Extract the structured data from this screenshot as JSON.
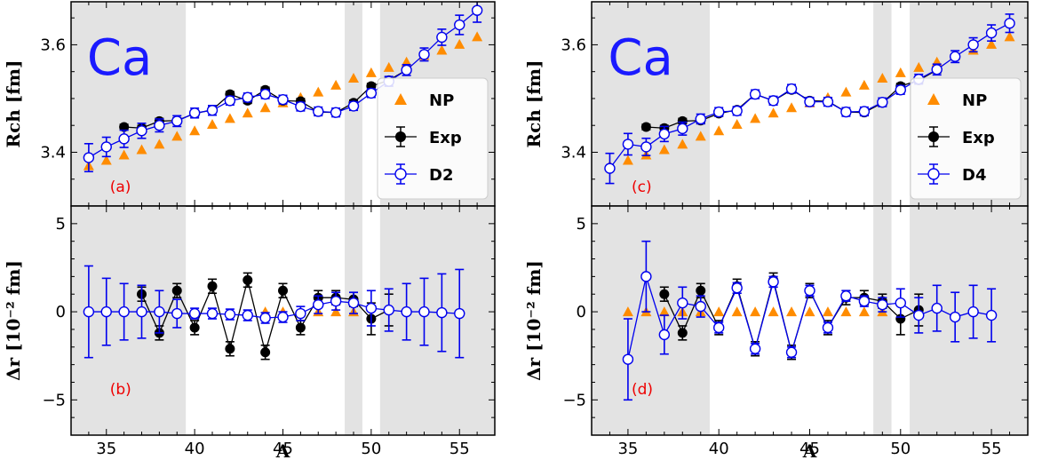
{
  "colors": {
    "np": "#ff8c00",
    "exp": "#000000",
    "theory": "#0000ee",
    "shade": "#e3e3e3",
    "element": "#1a1aff",
    "tag": "#ee0000"
  },
  "figure": {
    "element_label": "Ca",
    "xlabel": "A",
    "ylabel_top": "Rch [fm]",
    "ylabel_bottom": "Δr [10⁻² fm]"
  },
  "chart_data": [
    {
      "type": "scatter",
      "panel": "(a)",
      "xlabel": "",
      "ylabel": "Rch [fm]",
      "xlim": [
        33,
        57
      ],
      "ylim": [
        3.3,
        3.68
      ],
      "yticks": [
        3.4,
        3.6
      ],
      "xticks": [
        35,
        40,
        45,
        50,
        55
      ],
      "shaded_x": [
        [
          33,
          39.5
        ],
        [
          48.5,
          49.5
        ],
        [
          50.5,
          57
        ]
      ],
      "legend_position": "lower right",
      "legend": [
        "NP",
        "Exp",
        "D2"
      ],
      "series": [
        {
          "name": "NP",
          "marker": "triangle",
          "x": [
            34,
            35,
            36,
            37,
            38,
            39,
            40,
            41,
            42,
            43,
            44,
            45,
            46,
            47,
            48,
            49,
            50,
            51,
            52,
            53,
            54,
            55,
            56
          ],
          "y": [
            3.375,
            3.385,
            3.395,
            3.405,
            3.415,
            3.43,
            3.44,
            3.452,
            3.463,
            3.473,
            3.483,
            3.492,
            3.502,
            3.512,
            3.525,
            3.538,
            3.548,
            3.558,
            3.568,
            3.58,
            3.59,
            3.601,
            3.615
          ]
        },
        {
          "name": "Exp",
          "marker": "filled-circle",
          "x": [
            36,
            37,
            38,
            39,
            40,
            41,
            42,
            43,
            44,
            45,
            46,
            47,
            48,
            49,
            50,
            51,
            52
          ],
          "y": [
            3.447,
            3.445,
            3.458,
            3.459,
            3.472,
            3.479,
            3.508,
            3.496,
            3.516,
            3.496,
            3.495,
            3.475,
            3.474,
            3.492,
            3.523,
            3.534,
            3.553
          ],
          "err": [
            0.005,
            0.005,
            0.005,
            0.005,
            0.005,
            0.005,
            0.005,
            0.005,
            0.005,
            0.005,
            0.005,
            0.005,
            0.005,
            0.005,
            0.005,
            0.005,
            0.005
          ]
        },
        {
          "name": "D2",
          "marker": "open-circle",
          "x": [
            34,
            35,
            36,
            37,
            38,
            39,
            40,
            41,
            42,
            43,
            44,
            45,
            46,
            47,
            48,
            49,
            50,
            51,
            52,
            53,
            54,
            55,
            56
          ],
          "y": [
            3.39,
            3.41,
            3.425,
            3.44,
            3.45,
            3.458,
            3.473,
            3.478,
            3.496,
            3.502,
            3.508,
            3.498,
            3.485,
            3.476,
            3.474,
            3.486,
            3.51,
            3.532,
            3.553,
            3.582,
            3.614,
            3.637,
            3.664
          ],
          "err": [
            0.026,
            0.018,
            0.016,
            0.014,
            0.012,
            0.01,
            0.009,
            0.009,
            0.008,
            0.008,
            0.008,
            0.008,
            0.008,
            0.008,
            0.008,
            0.008,
            0.008,
            0.009,
            0.01,
            0.012,
            0.015,
            0.018,
            0.022
          ]
        }
      ]
    },
    {
      "type": "scatter",
      "panel": "(b)",
      "xlabel": "A",
      "ylabel": "Δr [10⁻² fm]",
      "xlim": [
        33,
        57
      ],
      "ylim": [
        -7,
        6
      ],
      "yticks": [
        -5,
        0,
        5
      ],
      "xticks": [
        35,
        40,
        45,
        50,
        55
      ],
      "shaded_x": [
        [
          33,
          39.5
        ],
        [
          48.5,
          49.5
        ],
        [
          50.5,
          57
        ]
      ],
      "series": [
        {
          "name": "NP",
          "marker": "triangle",
          "x": [
            44,
            45,
            46,
            47,
            48,
            49
          ],
          "y": [
            0,
            0,
            0,
            0,
            0,
            0
          ]
        },
        {
          "name": "Exp",
          "marker": "filled-circle",
          "x": [
            37,
            38,
            39,
            40,
            41,
            42,
            43,
            44,
            45,
            46,
            47,
            48,
            49,
            50,
            51
          ],
          "y": [
            1.0,
            -1.2,
            1.2,
            -0.9,
            1.45,
            -2.1,
            1.8,
            -2.3,
            1.2,
            -0.9,
            0.8,
            0.8,
            0.7,
            -0.4,
            0.1
          ],
          "err": [
            0.4,
            0.4,
            0.4,
            0.4,
            0.4,
            0.4,
            0.4,
            0.4,
            0.4,
            0.4,
            0.4,
            0.4,
            0.4,
            0.9,
            0.9
          ]
        },
        {
          "name": "D2",
          "marker": "open-circle",
          "x": [
            34,
            35,
            36,
            37,
            38,
            39,
            40,
            41,
            42,
            43,
            44,
            45,
            46,
            47,
            48,
            49,
            50,
            51,
            52,
            53,
            54,
            55
          ],
          "y": [
            0,
            0,
            0,
            0,
            0,
            -0.1,
            -0.1,
            -0.1,
            -0.15,
            -0.2,
            -0.35,
            -0.3,
            -0.1,
            0.4,
            0.6,
            0.5,
            0.2,
            0.1,
            0,
            0,
            -0.05,
            -0.1
          ],
          "err": [
            2.6,
            1.9,
            1.6,
            1.5,
            1.2,
            0.8,
            0.3,
            0.3,
            0.3,
            0.3,
            0.3,
            0.3,
            0.4,
            0.5,
            0.5,
            0.6,
            1.0,
            1.2,
            1.6,
            1.9,
            2.2,
            2.5
          ]
        }
      ]
    },
    {
      "type": "scatter",
      "panel": "(c)",
      "xlabel": "",
      "ylabel": "Rch [fm]",
      "xlim": [
        33,
        57
      ],
      "ylim": [
        3.3,
        3.68
      ],
      "yticks": [
        3.4,
        3.6
      ],
      "xticks": [
        35,
        40,
        45,
        50,
        55
      ],
      "shaded_x": [
        [
          33,
          39.5
        ],
        [
          48.5,
          49.5
        ],
        [
          50.5,
          57
        ]
      ],
      "legend_position": "lower right",
      "legend": [
        "NP",
        "Exp",
        "D4"
      ],
      "series": [
        {
          "name": "NP",
          "marker": "triangle",
          "x": [
            34,
            35,
            36,
            37,
            38,
            39,
            40,
            41,
            42,
            43,
            44,
            45,
            46,
            47,
            48,
            49,
            50,
            51,
            52,
            53,
            54,
            55,
            56
          ],
          "y": [
            3.375,
            3.385,
            3.395,
            3.405,
            3.415,
            3.43,
            3.44,
            3.452,
            3.463,
            3.473,
            3.483,
            3.492,
            3.502,
            3.512,
            3.525,
            3.538,
            3.548,
            3.558,
            3.568,
            3.58,
            3.59,
            3.601,
            3.615
          ]
        },
        {
          "name": "Exp",
          "marker": "filled-circle",
          "x": [
            36,
            37,
            38,
            39,
            40,
            41,
            42,
            43,
            44,
            45,
            46,
            47,
            48,
            49,
            50,
            51,
            52
          ],
          "y": [
            3.447,
            3.445,
            3.458,
            3.459,
            3.472,
            3.479,
            3.508,
            3.496,
            3.516,
            3.496,
            3.495,
            3.475,
            3.474,
            3.492,
            3.523,
            3.534,
            3.553
          ],
          "err": [
            0.005,
            0.005,
            0.005,
            0.005,
            0.005,
            0.005,
            0.005,
            0.005,
            0.005,
            0.005,
            0.005,
            0.005,
            0.005,
            0.005,
            0.005,
            0.005,
            0.005
          ]
        },
        {
          "name": "D4",
          "marker": "open-circle",
          "x": [
            34,
            35,
            36,
            37,
            38,
            39,
            40,
            41,
            42,
            43,
            44,
            45,
            46,
            47,
            48,
            49,
            50,
            51,
            52,
            53,
            54,
            55,
            56
          ],
          "y": [
            3.37,
            3.415,
            3.41,
            3.434,
            3.444,
            3.462,
            3.475,
            3.477,
            3.508,
            3.496,
            3.518,
            3.494,
            3.494,
            3.475,
            3.476,
            3.493,
            3.516,
            3.536,
            3.554,
            3.578,
            3.6,
            3.622,
            3.64
          ],
          "err": [
            0.028,
            0.02,
            0.016,
            0.014,
            0.012,
            0.009,
            0.008,
            0.008,
            0.008,
            0.008,
            0.008,
            0.008,
            0.008,
            0.008,
            0.008,
            0.008,
            0.008,
            0.009,
            0.01,
            0.011,
            0.013,
            0.015,
            0.017
          ]
        }
      ]
    },
    {
      "type": "scatter",
      "panel": "(d)",
      "xlabel": "A",
      "ylabel": "Δr [10⁻² fm]",
      "xlim": [
        33,
        57
      ],
      "ylim": [
        -7,
        6
      ],
      "yticks": [
        -5,
        0,
        5
      ],
      "xticks": [
        35,
        40,
        45,
        50,
        55
      ],
      "shaded_x": [
        [
          33,
          39.5
        ],
        [
          48.5,
          49.5
        ],
        [
          50.5,
          57
        ]
      ],
      "series": [
        {
          "name": "NP",
          "marker": "triangle",
          "x": [
            35,
            36,
            37,
            38,
            39,
            40,
            41,
            42,
            43,
            44,
            45,
            46,
            47,
            48,
            49
          ],
          "y": [
            0,
            0,
            0,
            0,
            0,
            0,
            0,
            0,
            0,
            0,
            0,
            0,
            0,
            0,
            0
          ]
        },
        {
          "name": "Exp",
          "marker": "filled-circle",
          "x": [
            37,
            38,
            39,
            40,
            41,
            42,
            43,
            44,
            45,
            46,
            47,
            48,
            49,
            50,
            51
          ],
          "y": [
            1.0,
            -1.2,
            1.2,
            -0.9,
            1.45,
            -2.1,
            1.8,
            -2.3,
            1.2,
            -0.9,
            0.8,
            0.8,
            0.6,
            -0.4,
            0.1
          ],
          "err": [
            0.4,
            0.4,
            0.4,
            0.4,
            0.4,
            0.4,
            0.4,
            0.4,
            0.4,
            0.4,
            0.4,
            0.4,
            0.4,
            0.9,
            0.9
          ]
        },
        {
          "name": "D4",
          "marker": "open-circle",
          "x": [
            35,
            36,
            37,
            38,
            39,
            40,
            41,
            42,
            43,
            44,
            45,
            46,
            47,
            48,
            49,
            50,
            51,
            52,
            53,
            54,
            55
          ],
          "y": [
            -2.7,
            2.0,
            -1.3,
            0.5,
            0.3,
            -0.9,
            1.35,
            -2.1,
            1.7,
            -2.3,
            1.2,
            -0.9,
            0.9,
            0.6,
            0.4,
            0.5,
            -0.2,
            0.2,
            -0.3,
            0.0,
            -0.2
          ],
          "err": [
            2.3,
            2.0,
            1.1,
            0.9,
            0.6,
            0.3,
            0.3,
            0.3,
            0.3,
            0.3,
            0.3,
            0.3,
            0.3,
            0.3,
            0.4,
            0.8,
            1.0,
            1.3,
            1.4,
            1.5,
            1.5
          ]
        }
      ]
    }
  ]
}
